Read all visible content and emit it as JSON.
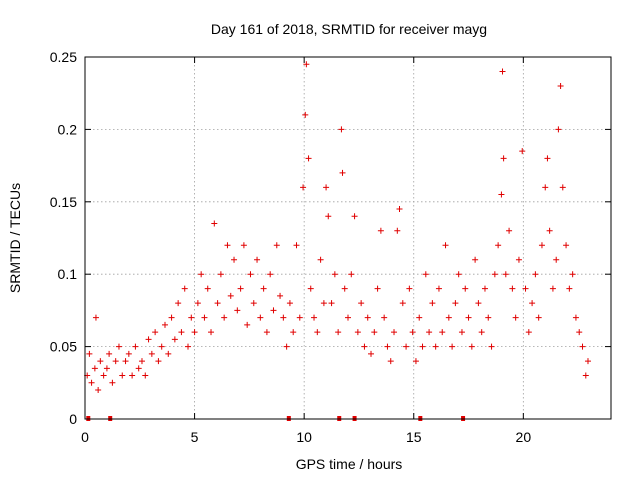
{
  "chart_data": {
    "type": "scatter",
    "title": "Day 161 of 2018, SRMTID for receiver mayg",
    "xlabel": "GPS time / hours",
    "ylabel": "SRMTID / TECUs",
    "xlim": [
      0,
      24
    ],
    "ylim": [
      0,
      0.25
    ],
    "x_ticks": [
      0,
      5,
      10,
      15,
      20
    ],
    "x_tick_labels": [
      "0",
      "5",
      "10",
      "15",
      "20"
    ],
    "y_ticks": [
      0,
      0.05,
      0.1,
      0.15,
      0.2,
      0.25
    ],
    "y_tick_labels": [
      "0",
      "0.05",
      "0.1",
      "0.15",
      "0.2",
      "0.25"
    ],
    "grid": true,
    "marker": "+",
    "color": "#e00000",
    "baseline_markers_x": [
      0.15,
      1.15,
      9.3,
      11.6,
      12.3,
      15.3,
      17.25
    ],
    "series": [
      {
        "name": "SRMTID",
        "points": [
          [
            0.1,
            0.03
          ],
          [
            0.2,
            0.045
          ],
          [
            0.3,
            0.025
          ],
          [
            0.45,
            0.035
          ],
          [
            0.5,
            0.07
          ],
          [
            0.6,
            0.02
          ],
          [
            0.7,
            0.04
          ],
          [
            0.85,
            0.03
          ],
          [
            1.0,
            0.035
          ],
          [
            1.1,
            0.045
          ],
          [
            1.25,
            0.025
          ],
          [
            1.4,
            0.04
          ],
          [
            1.55,
            0.05
          ],
          [
            1.7,
            0.03
          ],
          [
            1.85,
            0.04
          ],
          [
            2.0,
            0.045
          ],
          [
            2.15,
            0.03
          ],
          [
            2.3,
            0.05
          ],
          [
            2.45,
            0.035
          ],
          [
            2.6,
            0.04
          ],
          [
            2.75,
            0.03
          ],
          [
            2.9,
            0.055
          ],
          [
            3.05,
            0.045
          ],
          [
            3.2,
            0.06
          ],
          [
            3.35,
            0.04
          ],
          [
            3.5,
            0.05
          ],
          [
            3.65,
            0.065
          ],
          [
            3.8,
            0.045
          ],
          [
            3.95,
            0.07
          ],
          [
            4.1,
            0.055
          ],
          [
            4.25,
            0.08
          ],
          [
            4.4,
            0.06
          ],
          [
            4.55,
            0.09
          ],
          [
            4.7,
            0.05
          ],
          [
            4.85,
            0.07
          ],
          [
            5.0,
            0.06
          ],
          [
            5.15,
            0.08
          ],
          [
            5.3,
            0.1
          ],
          [
            5.45,
            0.07
          ],
          [
            5.6,
            0.09
          ],
          [
            5.75,
            0.06
          ],
          [
            5.9,
            0.135
          ],
          [
            6.05,
            0.08
          ],
          [
            6.2,
            0.1
          ],
          [
            6.35,
            0.07
          ],
          [
            6.5,
            0.12
          ],
          [
            6.65,
            0.085
          ],
          [
            6.8,
            0.11
          ],
          [
            6.95,
            0.075
          ],
          [
            7.1,
            0.09
          ],
          [
            7.25,
            0.12
          ],
          [
            7.4,
            0.065
          ],
          [
            7.55,
            0.1
          ],
          [
            7.7,
            0.08
          ],
          [
            7.85,
            0.11
          ],
          [
            8.0,
            0.07
          ],
          [
            8.15,
            0.09
          ],
          [
            8.3,
            0.06
          ],
          [
            8.45,
            0.1
          ],
          [
            8.6,
            0.075
          ],
          [
            8.75,
            0.12
          ],
          [
            8.9,
            0.085
          ],
          [
            9.05,
            0.07
          ],
          [
            9.2,
            0.05
          ],
          [
            9.35,
            0.08
          ],
          [
            9.5,
            0.06
          ],
          [
            9.65,
            0.12
          ],
          [
            9.8,
            0.07
          ],
          [
            9.95,
            0.16
          ],
          [
            10.05,
            0.21
          ],
          [
            10.1,
            0.245
          ],
          [
            10.2,
            0.18
          ],
          [
            10.3,
            0.09
          ],
          [
            10.45,
            0.07
          ],
          [
            10.6,
            0.06
          ],
          [
            10.75,
            0.11
          ],
          [
            10.9,
            0.08
          ],
          [
            11.0,
            0.16
          ],
          [
            11.1,
            0.14
          ],
          [
            11.25,
            0.08
          ],
          [
            11.4,
            0.1
          ],
          [
            11.55,
            0.06
          ],
          [
            11.7,
            0.2
          ],
          [
            11.75,
            0.17
          ],
          [
            11.85,
            0.09
          ],
          [
            12.0,
            0.07
          ],
          [
            12.15,
            0.1
          ],
          [
            12.3,
            0.14
          ],
          [
            12.45,
            0.06
          ],
          [
            12.6,
            0.08
          ],
          [
            12.75,
            0.05
          ],
          [
            12.9,
            0.07
          ],
          [
            13.05,
            0.045
          ],
          [
            13.2,
            0.06
          ],
          [
            13.35,
            0.09
          ],
          [
            13.5,
            0.13
          ],
          [
            13.65,
            0.07
          ],
          [
            13.8,
            0.05
          ],
          [
            13.95,
            0.04
          ],
          [
            14.1,
            0.06
          ],
          [
            14.25,
            0.13
          ],
          [
            14.35,
            0.145
          ],
          [
            14.5,
            0.08
          ],
          [
            14.65,
            0.05
          ],
          [
            14.8,
            0.09
          ],
          [
            14.95,
            0.06
          ],
          [
            15.1,
            0.04
          ],
          [
            15.25,
            0.07
          ],
          [
            15.4,
            0.05
          ],
          [
            15.55,
            0.1
          ],
          [
            15.7,
            0.06
          ],
          [
            15.85,
            0.08
          ],
          [
            16.0,
            0.05
          ],
          [
            16.15,
            0.09
          ],
          [
            16.3,
            0.06
          ],
          [
            16.45,
            0.12
          ],
          [
            16.6,
            0.07
          ],
          [
            16.75,
            0.05
          ],
          [
            16.9,
            0.08
          ],
          [
            17.05,
            0.1
          ],
          [
            17.2,
            0.06
          ],
          [
            17.35,
            0.09
          ],
          [
            17.5,
            0.07
          ],
          [
            17.65,
            0.05
          ],
          [
            17.8,
            0.11
          ],
          [
            17.95,
            0.08
          ],
          [
            18.1,
            0.06
          ],
          [
            18.25,
            0.09
          ],
          [
            18.4,
            0.07
          ],
          [
            18.55,
            0.05
          ],
          [
            18.7,
            0.1
          ],
          [
            18.85,
            0.12
          ],
          [
            19.0,
            0.155
          ],
          [
            19.05,
            0.24
          ],
          [
            19.1,
            0.18
          ],
          [
            19.2,
            0.1
          ],
          [
            19.35,
            0.13
          ],
          [
            19.5,
            0.09
          ],
          [
            19.65,
            0.07
          ],
          [
            19.8,
            0.11
          ],
          [
            19.95,
            0.185
          ],
          [
            20.1,
            0.09
          ],
          [
            20.25,
            0.06
          ],
          [
            20.4,
            0.08
          ],
          [
            20.55,
            0.1
          ],
          [
            20.7,
            0.07
          ],
          [
            20.85,
            0.12
          ],
          [
            21.0,
            0.16
          ],
          [
            21.1,
            0.18
          ],
          [
            21.2,
            0.13
          ],
          [
            21.35,
            0.09
          ],
          [
            21.5,
            0.11
          ],
          [
            21.6,
            0.2
          ],
          [
            21.7,
            0.23
          ],
          [
            21.8,
            0.16
          ],
          [
            21.95,
            0.12
          ],
          [
            22.1,
            0.09
          ],
          [
            22.25,
            0.1
          ],
          [
            22.4,
            0.07
          ],
          [
            22.55,
            0.06
          ],
          [
            22.7,
            0.05
          ],
          [
            22.85,
            0.03
          ],
          [
            22.95,
            0.04
          ]
        ]
      }
    ]
  }
}
